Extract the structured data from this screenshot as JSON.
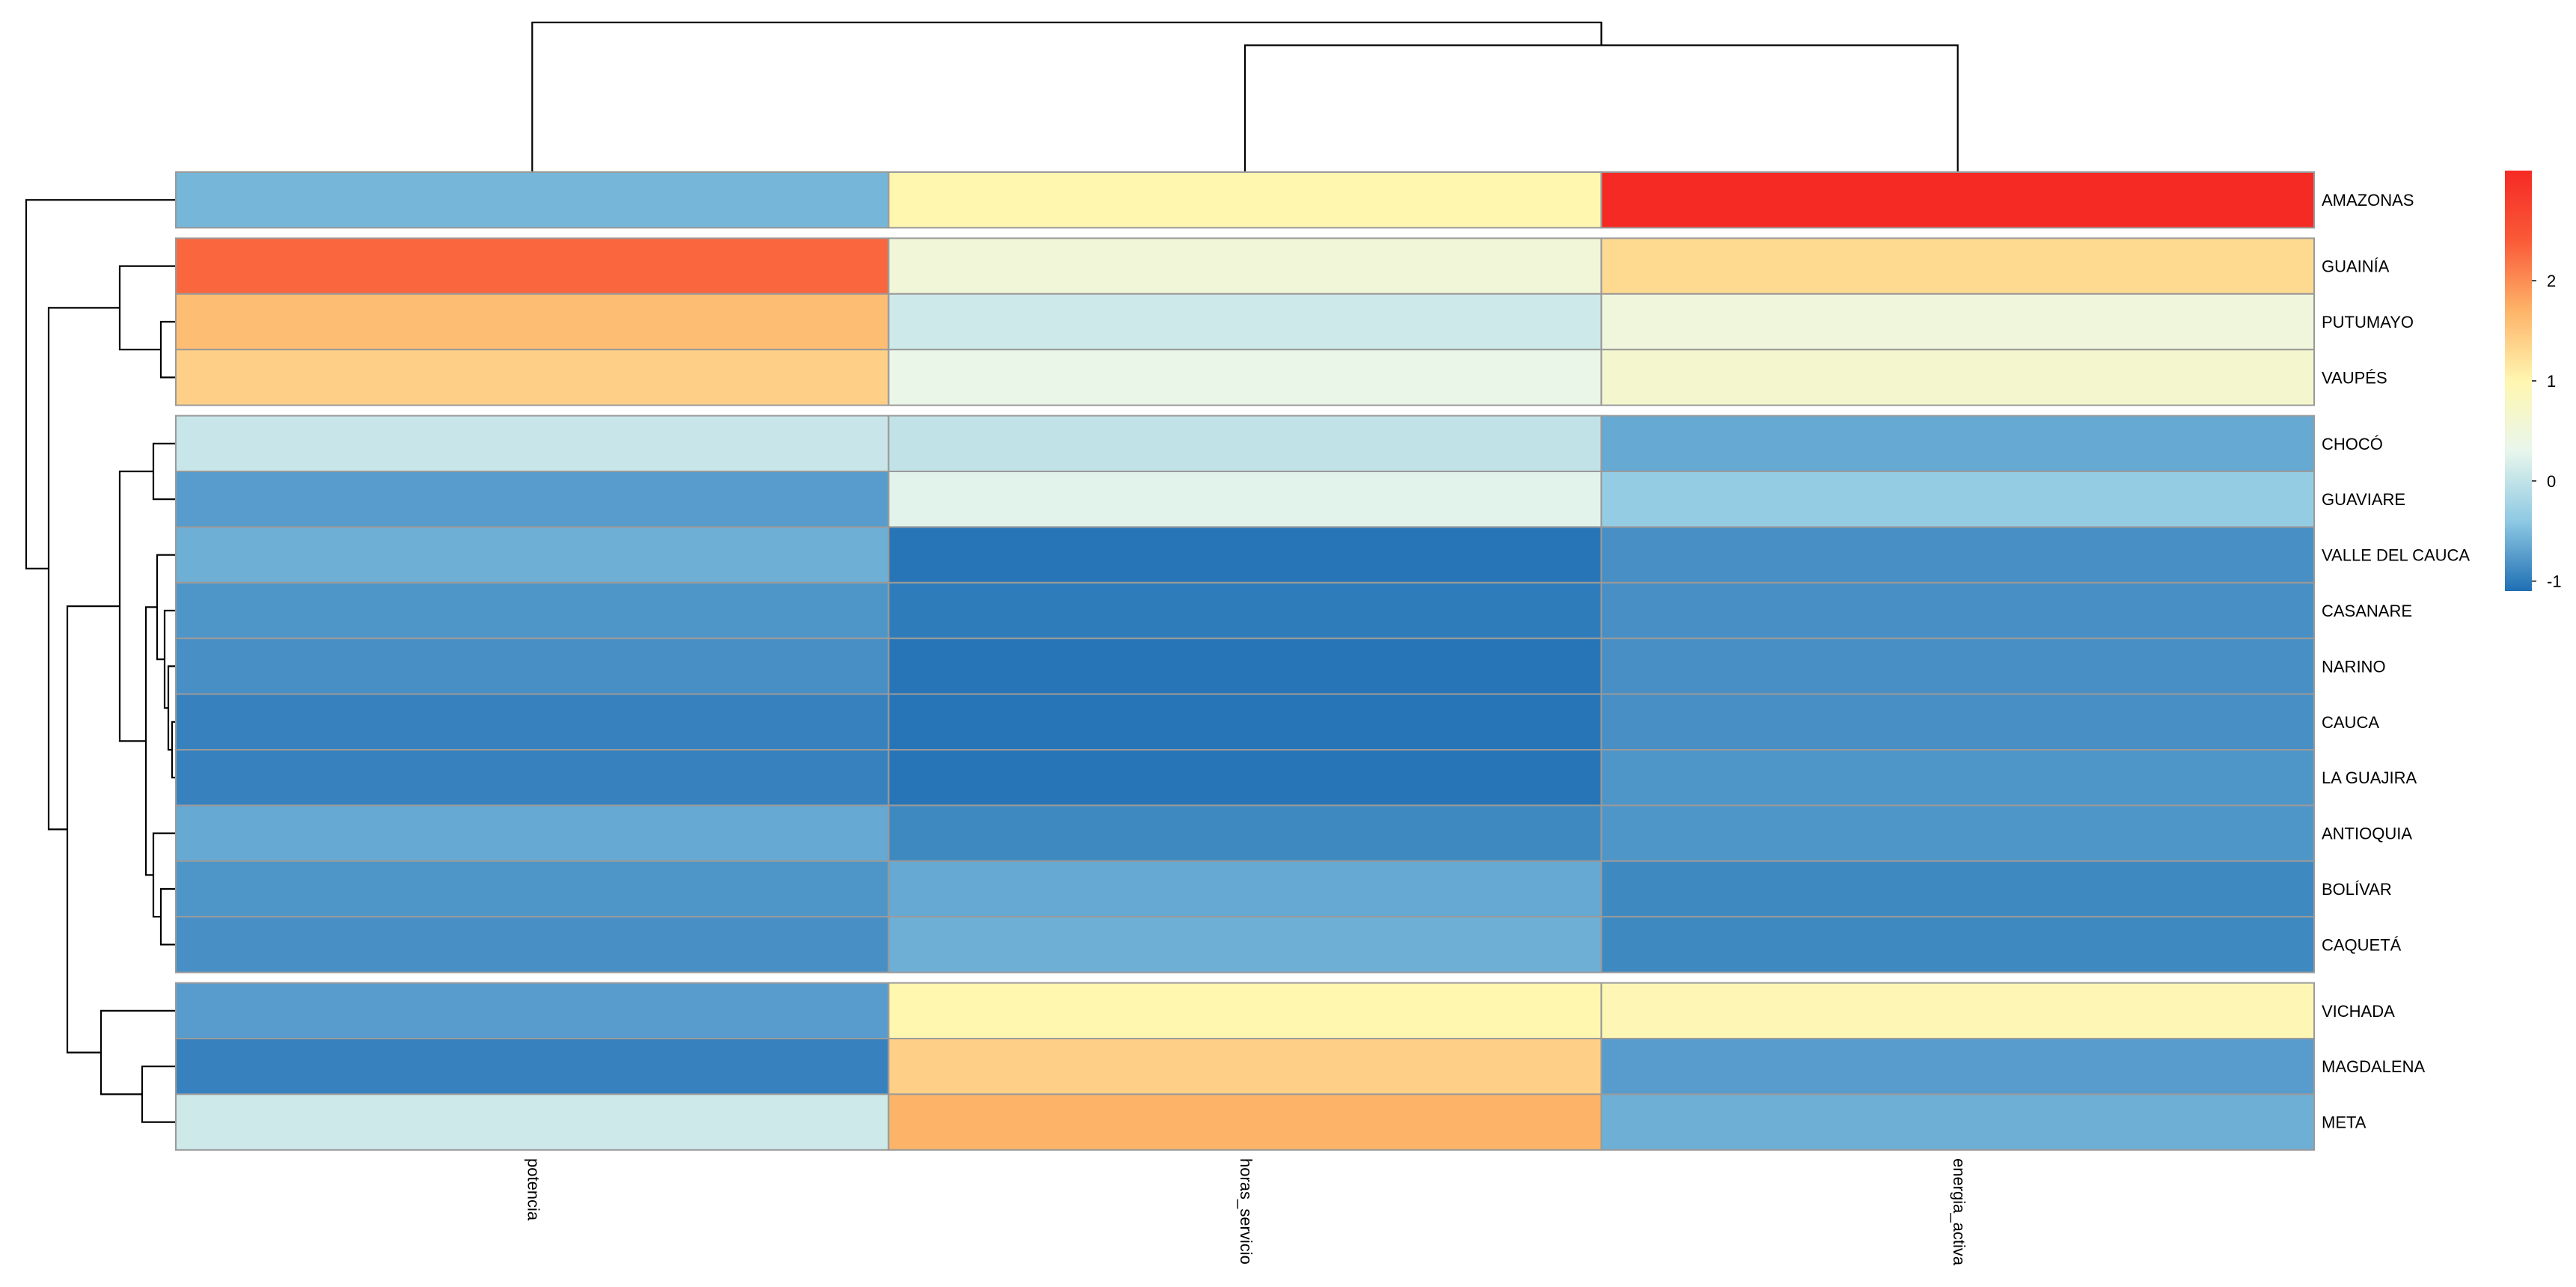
{
  "chart_data": {
    "type": "heatmap",
    "title": "",
    "xlabel": "",
    "ylabel": "",
    "columns": [
      "potencia",
      "horas_servicio",
      "energia_activa"
    ],
    "rows": [
      "AMAZONAS",
      "GUAINÍA",
      "PUTUMAYO",
      "VAUPÉS",
      "CHOCÓ",
      "GUAVIARE",
      "VALLE DEL CAUCA",
      "CASANARE",
      "NARINO",
      "CAUCA",
      "LA GUAJIRA",
      "ANTIOQUIA",
      "BOLÍVAR",
      "CAQUETÁ",
      "VICHADA",
      "MAGDALENA",
      "META"
    ],
    "values": [
      [
        -0.55,
        1.0,
        3.1
      ],
      [
        2.3,
        0.55,
        1.3
      ],
      [
        1.6,
        0.1,
        0.5
      ],
      [
        1.4,
        0.35,
        0.65
      ],
      [
        0.05,
        0.0,
        -0.65
      ],
      [
        -0.75,
        0.25,
        -0.35
      ],
      [
        -0.6,
        -1.05,
        -0.85
      ],
      [
        -0.8,
        -1.0,
        -0.85
      ],
      [
        -0.85,
        -1.05,
        -0.85
      ],
      [
        -0.95,
        -1.05,
        -0.85
      ],
      [
        -0.95,
        -1.05,
        -0.8
      ],
      [
        -0.65,
        -0.9,
        -0.8
      ],
      [
        -0.8,
        -0.65,
        -0.9
      ],
      [
        -0.85,
        -0.6,
        -0.9
      ],
      [
        -0.75,
        1.0,
        0.95
      ],
      [
        -0.95,
        1.4,
        -0.75
      ],
      [
        0.1,
        1.7,
        -0.6
      ]
    ],
    "row_gaps_after": [
      0,
      3,
      13
    ],
    "color_scale": {
      "min": -1.1,
      "max": 3.1,
      "stops": [
        [
          -1.1,
          "#1F6FB4"
        ],
        [
          -0.4,
          "#8EC9E3"
        ],
        [
          0.3,
          "#E8F6EC"
        ],
        [
          1.0,
          "#FFF6B0"
        ],
        [
          1.7,
          "#FDB468"
        ],
        [
          2.4,
          "#FA5A38"
        ],
        [
          3.1,
          "#F52A24"
        ]
      ],
      "legend_ticks": [
        "-1",
        "0",
        "1",
        "2"
      ]
    },
    "row_dendrogram": {
      "label_order": [
        "AMAZONAS",
        "GUAINÍA",
        "PUTUMAYO",
        "VAUPÉS",
        "CHOCÓ",
        "GUAVIARE",
        "VALLE DEL CAUCA",
        "CASANARE",
        "NARINO",
        "CAUCA",
        "LA GUAJIRA",
        "ANTIOQUIA",
        "BOLÍVAR",
        "CAQUETÁ",
        "VICHADA",
        "MAGDALENA",
        "META"
      ],
      "merges": [
        [
          -3,
          -4,
          0.2
        ],
        [
          -2,
          1,
          0.75
        ],
        [
          -10,
          -11,
          0.05
        ],
        [
          -9,
          3,
          0.1
        ],
        [
          -8,
          4,
          0.15
        ],
        [
          -7,
          5,
          0.25
        ],
        [
          -13,
          -14,
          0.2
        ],
        [
          -12,
          7,
          0.3
        ],
        [
          6,
          8,
          0.4
        ],
        [
          -5,
          -6,
          0.3
        ],
        [
          10,
          9,
          0.75
        ],
        [
          -16,
          -17,
          0.45
        ],
        [
          -15,
          12,
          1.0
        ],
        [
          11,
          13,
          1.45
        ],
        [
          2,
          14,
          1.7
        ],
        [
          -1,
          15,
          2.0
        ]
      ]
    },
    "col_dendrogram": {
      "label_order": [
        "potencia",
        "horas_servicio",
        "energia_activa"
      ],
      "merges": [
        [
          -2,
          -3,
          2.5
        ],
        [
          -1,
          1,
          2.95
        ]
      ]
    }
  }
}
